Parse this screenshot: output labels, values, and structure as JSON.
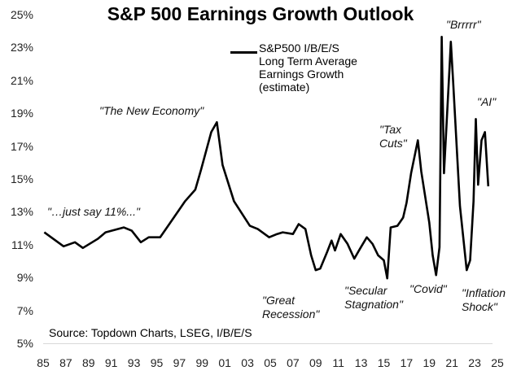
{
  "chart_data": {
    "type": "line",
    "title": "S&P 500 Earnings Growth Outlook",
    "xlabel": "",
    "ylabel": "",
    "ylim": [
      5,
      25
    ],
    "xlim": [
      1985,
      2025
    ],
    "yticks": [
      "5%",
      "7%",
      "9%",
      "11%",
      "13%",
      "15%",
      "17%",
      "19%",
      "21%",
      "23%",
      "25%"
    ],
    "xticks": [
      "85",
      "87",
      "89",
      "91",
      "93",
      "95",
      "97",
      "99",
      "01",
      "03",
      "05",
      "07",
      "09",
      "11",
      "13",
      "15",
      "17",
      "19",
      "21",
      "23",
      "25"
    ],
    "grid": false,
    "legend_position": "top-center",
    "series": [
      {
        "name": "S&P500 I/B/E/S Long Term Average Earnings Growth (estimate)",
        "legend_lines": [
          "S&P500 I/B/E/S",
          "Long Term Average",
          "Earnings Growth",
          "(estimate)"
        ],
        "color": "#000000",
        "x": [
          1985.1,
          1986.8,
          1987.8,
          1988.5,
          1989.8,
          1990.5,
          1992.1,
          1992.8,
          1993.6,
          1994.3,
          1995.3,
          1996.0,
          1997.5,
          1998.4,
          1998.9,
          1999.8,
          2000.3,
          2000.8,
          2001.8,
          2003.2,
          2003.9,
          2004.9,
          2005.6,
          2006.1,
          2007.0,
          2007.5,
          2008.1,
          2008.6,
          2009.0,
          2009.4,
          2010.0,
          2010.4,
          2010.7,
          2011.2,
          2011.8,
          2012.4,
          2012.9,
          2013.5,
          2014.0,
          2014.5,
          2015.0,
          2015.3,
          2015.6,
          2016.2,
          2016.7,
          2017.0,
          2017.4,
          2018.0,
          2018.3,
          2019.0,
          2019.3,
          2019.6,
          2019.9,
          2020.1,
          2020.3,
          2020.8,
          2020.9,
          2021.1,
          2021.7,
          2022.3,
          2022.6,
          2022.9,
          2023.1,
          2023.3,
          2023.6,
          2023.9,
          2024.2
        ],
        "y": [
          11.8,
          10.95,
          11.2,
          10.85,
          11.4,
          11.8,
          12.1,
          11.9,
          11.2,
          11.5,
          11.5,
          12.2,
          13.7,
          14.4,
          15.6,
          17.9,
          18.5,
          15.9,
          13.7,
          12.2,
          12.0,
          11.5,
          11.7,
          11.8,
          11.7,
          12.3,
          12.0,
          10.4,
          9.5,
          9.6,
          10.6,
          11.3,
          10.7,
          11.7,
          11.1,
          10.2,
          10.8,
          11.5,
          11.1,
          10.4,
          10.1,
          9.0,
          12.1,
          12.2,
          12.7,
          13.6,
          15.4,
          17.4,
          15.5,
          12.4,
          10.4,
          9.2,
          10.9,
          23.7,
          15.4,
          22.0,
          23.4,
          21.0,
          13.4,
          9.5,
          10.1,
          13.7,
          18.7,
          14.7,
          17.4,
          17.9,
          14.6
        ]
      }
    ],
    "annotations": [
      {
        "lines": [
          "\"The New Economy\""
        ]
      },
      {
        "lines": [
          "\"…just say 11%...\""
        ]
      },
      {
        "lines": [
          "\"Great",
          "Recession\""
        ]
      },
      {
        "lines": [
          "\"Secular",
          "Stagnation\""
        ]
      },
      {
        "lines": [
          "\"Covid\""
        ]
      },
      {
        "lines": [
          "\"Inflation",
          "Shock\""
        ]
      },
      {
        "lines": [
          "\"Tax",
          "Cuts\""
        ]
      },
      {
        "lines": [
          "\"Brrrrr\""
        ]
      },
      {
        "lines": [
          "\"AI\""
        ]
      }
    ],
    "source": "Source: Topdown Charts, LSEG, I/B/E/S"
  }
}
